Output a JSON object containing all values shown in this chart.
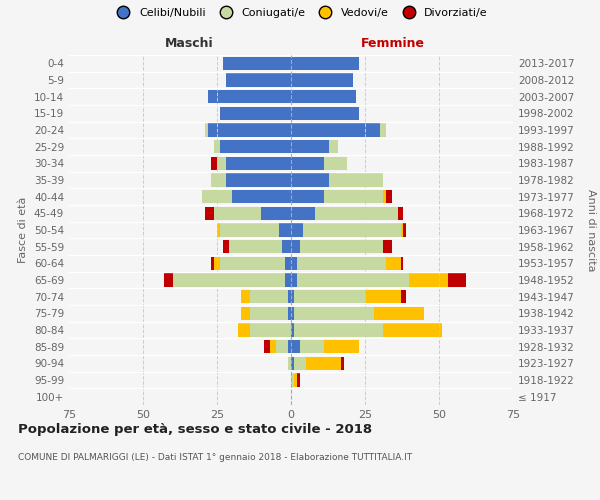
{
  "age_groups": [
    "100+",
    "95-99",
    "90-94",
    "85-89",
    "80-84",
    "75-79",
    "70-74",
    "65-69",
    "60-64",
    "55-59",
    "50-54",
    "45-49",
    "40-44",
    "35-39",
    "30-34",
    "25-29",
    "20-24",
    "15-19",
    "10-14",
    "5-9",
    "0-4"
  ],
  "birth_years": [
    "≤ 1917",
    "1918-1922",
    "1923-1927",
    "1928-1932",
    "1933-1937",
    "1938-1942",
    "1943-1947",
    "1948-1952",
    "1953-1957",
    "1958-1962",
    "1963-1967",
    "1968-1972",
    "1973-1977",
    "1978-1982",
    "1983-1987",
    "1988-1992",
    "1993-1997",
    "1998-2002",
    "2003-2007",
    "2008-2012",
    "2013-2017"
  ],
  "colors": {
    "celibi": "#4472c4",
    "coniugati": "#c5d9a0",
    "vedovi": "#ffc000",
    "divorziati": "#c00000"
  },
  "maschi": {
    "celibi": [
      0,
      0,
      0,
      1,
      0,
      1,
      1,
      2,
      2,
      3,
      4,
      10,
      20,
      22,
      22,
      24,
      28,
      24,
      28,
      22,
      23
    ],
    "coniugati": [
      0,
      0,
      1,
      4,
      14,
      13,
      13,
      38,
      22,
      18,
      20,
      16,
      10,
      5,
      3,
      2,
      1,
      0,
      0,
      0,
      0
    ],
    "vedovi": [
      0,
      0,
      0,
      2,
      4,
      3,
      3,
      0,
      2,
      0,
      1,
      0,
      0,
      0,
      0,
      0,
      0,
      0,
      0,
      0,
      0
    ],
    "divorziati": [
      0,
      0,
      0,
      2,
      0,
      0,
      0,
      3,
      1,
      2,
      0,
      3,
      0,
      0,
      2,
      0,
      0,
      0,
      0,
      0,
      0
    ]
  },
  "femmine": {
    "celibi": [
      0,
      0,
      1,
      3,
      1,
      1,
      1,
      2,
      2,
      3,
      4,
      8,
      11,
      13,
      11,
      13,
      30,
      23,
      22,
      21,
      23
    ],
    "coniugati": [
      0,
      1,
      4,
      8,
      30,
      27,
      24,
      38,
      30,
      28,
      33,
      28,
      20,
      18,
      8,
      3,
      2,
      0,
      0,
      0,
      0
    ],
    "vedovi": [
      0,
      1,
      12,
      12,
      20,
      17,
      12,
      13,
      5,
      0,
      1,
      0,
      1,
      0,
      0,
      0,
      0,
      0,
      0,
      0,
      0
    ],
    "divorziati": [
      0,
      1,
      1,
      0,
      0,
      0,
      2,
      6,
      1,
      3,
      1,
      2,
      2,
      0,
      0,
      0,
      0,
      0,
      0,
      0,
      0
    ]
  },
  "title": "Popolazione per età, sesso e stato civile - 2018",
  "subtitle": "COMUNE DI PALMARIGGI (LE) - Dati ISTAT 1° gennaio 2018 - Elaborazione TUTTITALIA.IT",
  "xlabel_left": "Maschi",
  "xlabel_right": "Femmine",
  "ylabel_left": "Fasce di età",
  "ylabel_right": "Anni di nascita",
  "xlim": 75,
  "background_color": "#f5f5f5",
  "bar_height": 0.8,
  "legend_labels": [
    "Celibi/Nubili",
    "Coniugati/e",
    "Vedovi/e",
    "Divorziati/e"
  ]
}
